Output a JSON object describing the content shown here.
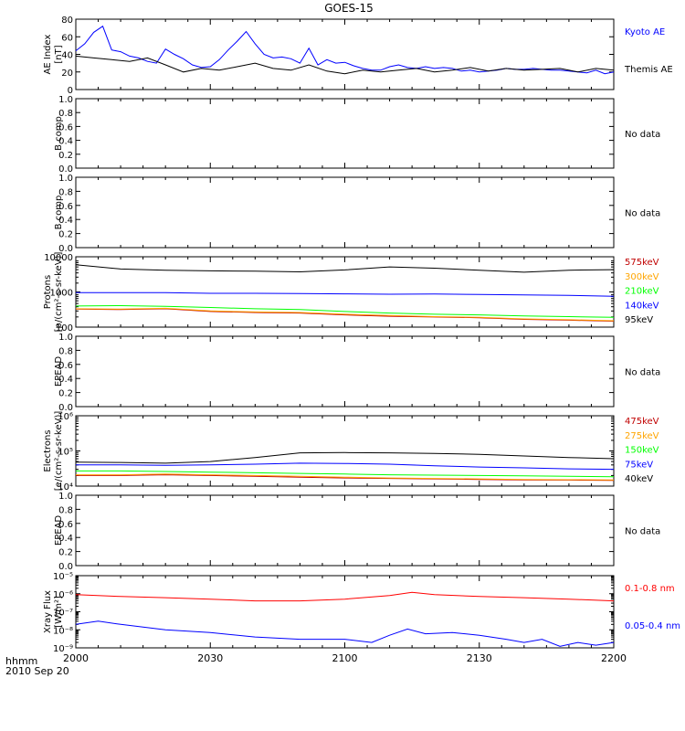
{
  "title": "GOES-15",
  "footer": {
    "time_label": "hhmm",
    "date_label": "2010 Sep 20"
  },
  "x_ticks": [
    "2000",
    "2030",
    "2100",
    "2130",
    "2200"
  ],
  "colors": {
    "black": "#000000",
    "blue": "#0000ff",
    "red": "#ff0000",
    "orange": "#ffa500",
    "green": "#00ff00",
    "darkred": "#c00000"
  },
  "chart_data": [
    {
      "type": "line",
      "ylabel": "AE Index\n[nT]",
      "ylim": [
        0,
        80
      ],
      "yticks": [
        "0",
        "20",
        "40",
        "60",
        "80"
      ],
      "series": [
        {
          "name": "Kyoto AE",
          "color": "#0000ff",
          "x": [
            0,
            2,
            4,
            6,
            8,
            10,
            12,
            14,
            16,
            18,
            20,
            22,
            24,
            26,
            28,
            30,
            32,
            34,
            36,
            38,
            40,
            42,
            44,
            46,
            48,
            50,
            52,
            54,
            56,
            58,
            60,
            62,
            64,
            66,
            68,
            70,
            72,
            74,
            76,
            78,
            80,
            82,
            84,
            86,
            88,
            90,
            92,
            94,
            96,
            98,
            100,
            102,
            104,
            106,
            108,
            110,
            112,
            114,
            116,
            118,
            120
          ],
          "y": [
            44,
            52,
            65,
            72,
            45,
            43,
            38,
            36,
            32,
            30,
            46,
            40,
            35,
            28,
            25,
            26,
            34,
            45,
            55,
            66,
            52,
            40,
            36,
            37,
            35,
            30,
            47,
            28,
            34,
            30,
            31,
            27,
            24,
            22,
            22,
            26,
            28,
            25,
            24,
            26,
            24,
            25,
            24,
            21,
            22,
            20,
            21,
            22,
            24,
            23,
            23,
            24,
            23,
            22,
            22,
            21,
            20,
            19,
            22,
            18,
            20
          ]
        },
        {
          "name": "Themis AE",
          "color": "#000000",
          "x": [
            0,
            4,
            8,
            12,
            16,
            20,
            24,
            28,
            32,
            36,
            40,
            44,
            48,
            52,
            56,
            60,
            64,
            68,
            72,
            76,
            80,
            84,
            88,
            92,
            96,
            100,
            104,
            108,
            112,
            116,
            120
          ],
          "y": [
            38,
            36,
            34,
            32,
            36,
            28,
            20,
            24,
            22,
            26,
            30,
            24,
            22,
            28,
            21,
            18,
            22,
            20,
            22,
            24,
            20,
            22,
            25,
            21,
            24,
            22,
            23,
            24,
            20,
            24,
            22
          ]
        }
      ]
    },
    {
      "type": "line",
      "ylabel": "B comp",
      "ylim": [
        0,
        1
      ],
      "yticks": [
        "0.0",
        "0.2",
        "0.4",
        "0.6",
        "0.8",
        "1.0"
      ],
      "note": "No data",
      "series": []
    },
    {
      "type": "line",
      "ylabel": "B comp",
      "ylim": [
        0,
        1
      ],
      "yticks": [
        "0.0",
        "0.2",
        "0.4",
        "0.6",
        "0.8",
        "1.0"
      ],
      "note": "No data",
      "series": []
    },
    {
      "type": "line",
      "ylabel": "Protons\n[p/(cm²-s-sr-keV)]",
      "yscale": "log",
      "ylim": [
        100,
        12000
      ],
      "yticks": [
        "100",
        "1000",
        "10000"
      ],
      "series": [
        {
          "name": "575keV",
          "color": "#c00000",
          "x": [
            0,
            10,
            20,
            30,
            40,
            50,
            60,
            70,
            80,
            90,
            100,
            110,
            120
          ],
          "y": [
            340,
            330,
            350,
            290,
            270,
            260,
            230,
            210,
            200,
            190,
            170,
            160,
            150
          ]
        },
        {
          "name": "300keV",
          "color": "#ffa500",
          "x": [
            0,
            10,
            20,
            30,
            40,
            50,
            60,
            70,
            80,
            90,
            100,
            110,
            120
          ],
          "y": [
            350,
            340,
            360,
            300,
            280,
            270,
            240,
            220,
            205,
            195,
            175,
            165,
            155
          ]
        },
        {
          "name": "210keV",
          "color": "#00ff00",
          "x": [
            0,
            10,
            20,
            30,
            40,
            50,
            60,
            70,
            80,
            90,
            100,
            110,
            120
          ],
          "y": [
            420,
            430,
            410,
            380,
            350,
            330,
            290,
            260,
            240,
            230,
            215,
            205,
            195
          ]
        },
        {
          "name": "140keV",
          "color": "#0000ff",
          "x": [
            0,
            10,
            20,
            30,
            40,
            50,
            60,
            70,
            80,
            90,
            100,
            110,
            120
          ],
          "y": [
            1050,
            1050,
            1050,
            1000,
            1000,
            980,
            960,
            940,
            950,
            920,
            900,
            870,
            820
          ]
        },
        {
          "name": "95keV",
          "color": "#000000",
          "x": [
            0,
            10,
            20,
            30,
            40,
            50,
            60,
            70,
            80,
            90,
            100,
            110,
            120
          ],
          "y": [
            7000,
            5200,
            4800,
            4600,
            4500,
            4300,
            4900,
            6000,
            5500,
            4800,
            4200,
            4800,
            5000
          ]
        }
      ]
    },
    {
      "type": "line",
      "ylabel": "EPEAD",
      "ylim": [
        0,
        1
      ],
      "yticks": [
        "0.0",
        "0.2",
        "0.4",
        "0.6",
        "0.8",
        "1.0"
      ],
      "note": "No data",
      "series": []
    },
    {
      "type": "line",
      "ylabel": "Electrons\n[e/(cm²-s-sr-keV)]",
      "yscale": "log",
      "ylim": [
        10000,
        1000000
      ],
      "yticks": [
        "10⁴",
        "10⁵",
        "10⁶"
      ],
      "series": [
        {
          "name": "475keV",
          "color": "#c00000",
          "x": [
            0,
            10,
            20,
            30,
            40,
            50,
            60,
            70,
            80,
            90,
            100,
            110,
            120
          ],
          "y": [
            20000,
            20000,
            21000,
            20000,
            19000,
            18000,
            17000,
            16500,
            16000,
            15500,
            15000,
            14800,
            14500
          ]
        },
        {
          "name": "275keV",
          "color": "#ffa500",
          "x": [
            0,
            10,
            20,
            30,
            40,
            50,
            60,
            70,
            80,
            90,
            100,
            110,
            120
          ],
          "y": [
            21000,
            21000,
            22000,
            21000,
            20000,
            19000,
            18000,
            17000,
            16500,
            16000,
            15500,
            15200,
            15000
          ]
        },
        {
          "name": "150keV",
          "color": "#00ff00",
          "x": [
            0,
            10,
            20,
            30,
            40,
            50,
            60,
            70,
            80,
            90,
            100,
            110,
            120
          ],
          "y": [
            27000,
            27000,
            26000,
            25000,
            24000,
            23000,
            22000,
            21000,
            20500,
            20000,
            19500,
            19000,
            18500
          ]
        },
        {
          "name": "75keV",
          "color": "#0000ff",
          "x": [
            0,
            10,
            20,
            30,
            40,
            50,
            60,
            70,
            80,
            90,
            100,
            110,
            120
          ],
          "y": [
            40000,
            40000,
            39000,
            40000,
            42000,
            45000,
            44000,
            42000,
            38000,
            35000,
            33000,
            31000,
            30000
          ]
        },
        {
          "name": "40keV",
          "color": "#000000",
          "x": [
            0,
            10,
            20,
            30,
            40,
            50,
            60,
            70,
            80,
            90,
            100,
            110,
            120
          ],
          "y": [
            48000,
            47000,
            45000,
            50000,
            65000,
            88000,
            90000,
            88000,
            85000,
            80000,
            72000,
            65000,
            60000
          ]
        }
      ]
    },
    {
      "type": "line",
      "ylabel": "EPEAD",
      "ylim": [
        0,
        1
      ],
      "yticks": [
        "0.0",
        "0.2",
        "0.4",
        "0.6",
        "0.8",
        "1.0"
      ],
      "note": "No data",
      "series": []
    },
    {
      "type": "line",
      "ylabel": "Xray Flux\n[W/m²]",
      "yscale": "log",
      "ylim": [
        1e-09,
        1e-05
      ],
      "yticks": [
        "10⁻⁹",
        "10⁻⁸",
        "10⁻⁷",
        "10⁻⁶",
        "10⁻⁵"
      ],
      "series": [
        {
          "name": "0.1-0.8 nm",
          "color": "#ff0000",
          "x": [
            0,
            10,
            20,
            30,
            40,
            50,
            60,
            70,
            75,
            80,
            90,
            100,
            110,
            120
          ],
          "y": [
            9e-07,
            7e-07,
            6e-07,
            5e-07,
            4e-07,
            4e-07,
            5e-07,
            8e-07,
            1.2e-06,
            9e-07,
            7e-07,
            6e-07,
            5e-07,
            4e-07
          ]
        },
        {
          "name": "0.05-0.4 nm",
          "color": "#0000ff",
          "x": [
            0,
            5,
            10,
            20,
            30,
            40,
            50,
            60,
            66,
            70,
            74,
            78,
            84,
            90,
            96,
            100,
            104,
            108,
            112,
            116,
            120
          ],
          "y": [
            2e-08,
            3e-08,
            2e-08,
            1e-08,
            7e-09,
            4e-09,
            3e-09,
            3e-09,
            2e-09,
            5e-09,
            1.1e-08,
            6e-09,
            7e-09,
            5e-09,
            3e-09,
            2e-09,
            3e-09,
            1.2e-09,
            2e-09,
            1.4e-09,
            2e-09
          ]
        }
      ]
    }
  ]
}
